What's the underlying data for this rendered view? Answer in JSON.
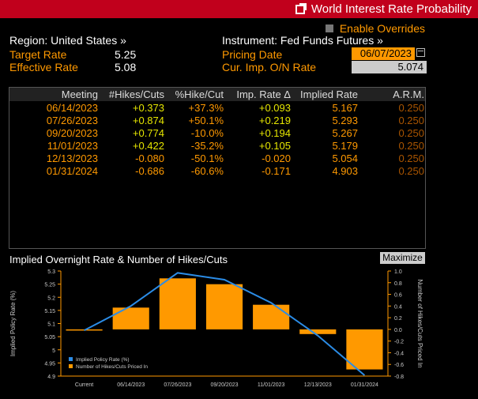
{
  "window": {
    "title": "World Interest Rate Probability"
  },
  "enable_overrides": "Enable Overrides",
  "header": {
    "region": "Region: United States »",
    "instrument": "Instrument: Fed Funds Futures »",
    "target_rate_label": "Target Rate",
    "target_rate_value": "5.25",
    "effective_rate_label": "Effective Rate",
    "effective_rate_value": "5.08",
    "pricing_date_label": "Pricing Date",
    "pricing_date_value": "06/07/2023",
    "cur_imp_label": "Cur. Imp. O/N Rate",
    "cur_imp_value": "5.074"
  },
  "table": {
    "columns": [
      "Meeting",
      "#Hikes/Cuts",
      "%Hike/Cut",
      "Imp. Rate Δ",
      "Implied Rate",
      "A.R.M."
    ],
    "rows": [
      {
        "meeting": "06/14/2023",
        "hikes": "+0.373",
        "pct": "+37.3%",
        "delta": "+0.093",
        "implied": "5.167",
        "arm": "0.250"
      },
      {
        "meeting": "07/26/2023",
        "hikes": "+0.874",
        "pct": "+50.1%",
        "delta": "+0.219",
        "implied": "5.293",
        "arm": "0.250"
      },
      {
        "meeting": "09/20/2023",
        "hikes": "+0.774",
        "pct": "-10.0%",
        "delta": "+0.194",
        "implied": "5.267",
        "arm": "0.250"
      },
      {
        "meeting": "11/01/2023",
        "hikes": "+0.422",
        "pct": "-35.2%",
        "delta": "+0.105",
        "implied": "5.179",
        "arm": "0.250"
      },
      {
        "meeting": "12/13/2023",
        "hikes": "-0.080",
        "pct": "-50.1%",
        "delta": "-0.020",
        "implied": "5.054",
        "arm": "0.250"
      },
      {
        "meeting": "01/31/2024",
        "hikes": "-0.686",
        "pct": "-60.6%",
        "delta": "-0.171",
        "implied": "4.903",
        "arm": "0.250"
      }
    ]
  },
  "chart_title": "Implied Overnight Rate & Number of Hikes/Cuts",
  "maximize_label": "Maximize",
  "colors": {
    "accent": "#ff9900",
    "title_bar": "#c1001c",
    "line": "#2b8ce6"
  },
  "chart_data": {
    "type": "bar",
    "categories": [
      "Current",
      "06/14/2023",
      "07/26/2023",
      "09/20/2023",
      "11/01/2023",
      "12/13/2023",
      "01/31/2024"
    ],
    "series": [
      {
        "name": "Implied Policy Rate (%)",
        "type": "line",
        "axis": "left",
        "values": [
          5.074,
          5.167,
          5.293,
          5.267,
          5.179,
          5.054,
          4.903
        ]
      },
      {
        "name": "Number of Hikes/Cuts Priced In",
        "type": "bar",
        "axis": "right",
        "values": [
          0,
          0.373,
          0.874,
          0.774,
          0.422,
          -0.08,
          -0.686
        ]
      }
    ],
    "ylabel_left": "Implied Policy Rate (%)",
    "ylabel_right": "Number of Hikes/Cuts Priced In",
    "ylim_left": [
      4.9,
      5.3
    ],
    "ylim_right": [
      -0.8,
      1.0
    ],
    "yticks_left": [
      "5.3",
      "5.25",
      "5.2",
      "5.15",
      "5.1",
      "5.05",
      "5",
      "4.95",
      "4.9"
    ],
    "yticks_right": [
      "1.0",
      "0.8",
      "0.6",
      "0.4",
      "0.2",
      "0.0",
      "-0.2",
      "-0.4",
      "-0.6",
      "-0.8"
    ],
    "legend_position": "bottom-left"
  }
}
